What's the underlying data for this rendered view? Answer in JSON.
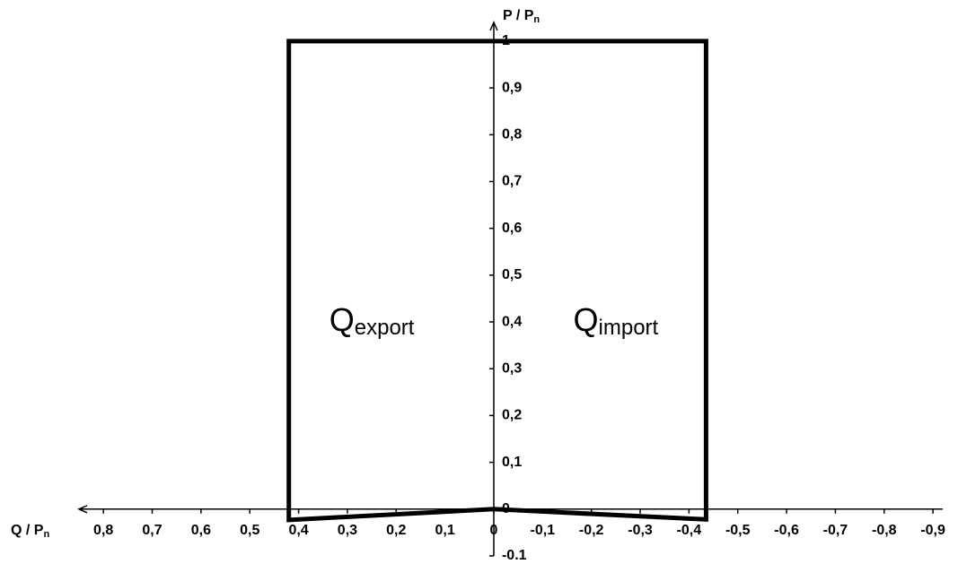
{
  "chart_data": {
    "type": "line",
    "x_label": {
      "main": "Q / P",
      "sub": "n"
    },
    "y_label": {
      "main": "P / P",
      "sub": "n"
    },
    "annotations": [
      {
        "main": "Q",
        "sub": "export",
        "x": 0.25,
        "y": 0.4
      },
      {
        "main": "Q",
        "sub": "import",
        "x": -0.25,
        "y": 0.4
      }
    ],
    "series": [
      {
        "color": "#000000",
        "x": [
          0.42,
          0.42,
          0,
          -0.435,
          -0.435
        ],
        "values": [
          1,
          -0.023,
          0,
          -0.022,
          1
        ]
      }
    ],
    "xlim": [
      0.85,
      -0.92
    ],
    "ylim": [
      -0.1,
      1.04
    ],
    "xticks": [
      {
        "value": 0.8,
        "label": "0,8"
      },
      {
        "value": 0.7,
        "label": "0,7"
      },
      {
        "value": 0.6,
        "label": "0,6"
      },
      {
        "value": 0.5,
        "label": "0,5"
      },
      {
        "value": 0.4,
        "label": "0,4"
      },
      {
        "value": 0.3,
        "label": "0,3"
      },
      {
        "value": 0.2,
        "label": "0,2"
      },
      {
        "value": 0.1,
        "label": "0,1"
      },
      0,
      {
        "value": -0.1,
        "label": "-0,1"
      },
      {
        "value": -0.2,
        "label": "-0,2"
      },
      {
        "value": -0.3,
        "label": "-0,3"
      },
      {
        "value": -0.4,
        "label": "-0,4"
      },
      {
        "value": -0.5,
        "label": "-0,5"
      },
      {
        "value": -0.6,
        "label": "-0,6"
      },
      {
        "value": -0.7,
        "label": "-0,7"
      },
      {
        "value": -0.8,
        "label": "-0,8"
      },
      {
        "value": -0.9,
        "label": "-0,9"
      }
    ],
    "yticks": [
      -0.1,
      0,
      {
        "value": 0.1,
        "label": "0,1"
      },
      {
        "value": 0.2,
        "label": "0,2"
      },
      {
        "value": 0.3,
        "label": "0,3"
      },
      {
        "value": 0.4,
        "label": "0,4"
      },
      {
        "value": 0.5,
        "label": "0,5"
      },
      {
        "value": 0.6,
        "label": "0,6"
      },
      {
        "value": 0.7,
        "label": "0,7"
      },
      {
        "value": 0.8,
        "label": "0,8"
      },
      {
        "value": 0.9,
        "label": "0,9"
      },
      1
    ]
  }
}
